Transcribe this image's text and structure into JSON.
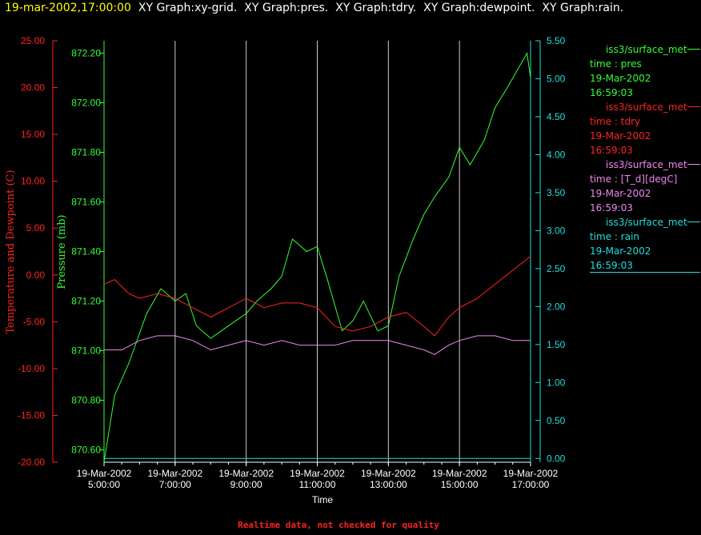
{
  "header": {
    "timestamp": "19-mar-2002,17:00:00",
    "graphs": "XY Graph:xy-grid.  XY Graph:pres.  XY Graph:tdry.  XY Graph:dewpoint.  XY Graph:rain."
  },
  "colors": {
    "timestamp": "#ffff00",
    "header_text": "#ffffff",
    "pres": "#33ff33",
    "tdry": "#ff2222",
    "dewpoint": "#ee88ee",
    "rain": "#22dddd",
    "grid": "#cccccc",
    "footer": "#ff2222",
    "axis_text": "#ffffff"
  },
  "legend": [
    {
      "name": "iss3/surface_met",
      "var": "time : pres",
      "date": "19-Mar-2002",
      "time": "16:59:03",
      "color_key": "pres"
    },
    {
      "name": "iss3/surface_met",
      "var": "time : tdry",
      "date": "19-Mar-2002",
      "time": "16:59:03",
      "color_key": "tdry"
    },
    {
      "name": "iss3/surface_met",
      "var": "time : [T_d][degC]",
      "date": "19-Mar-2002",
      "time": "16:59:03",
      "color_key": "dewpoint"
    },
    {
      "name": "iss3/surface_met",
      "var": "time : rain",
      "date": "19-Mar-2002",
      "time": "16:59:03",
      "color_key": "rain"
    }
  ],
  "footer": "Realtime data, not checked for quality",
  "chart_data": {
    "type": "line",
    "xlabel": "Time",
    "x_ticks": [
      [
        "19-Mar-2002",
        "5:00:00"
      ],
      [
        "19-Mar-2002",
        "7:00:00"
      ],
      [
        "19-Mar-2002",
        "9:00:00"
      ],
      [
        "19-Mar-2002",
        "11:00:00"
      ],
      [
        "19-Mar-2002",
        "13:00:00"
      ],
      [
        "19-Mar-2002",
        "15:00:00"
      ],
      [
        "19-Mar-2002",
        "17:00:00"
      ]
    ],
    "xlim": [
      5,
      17
    ],
    "x_unit": "hours",
    "axes": {
      "temperature": {
        "label": "Temperature and Dewpoint (C)",
        "ylim": [
          -20,
          25
        ],
        "ticks": [
          "25.00",
          "20.00",
          "15.00",
          "10.00",
          "5.00",
          "0.00",
          "-5.00",
          "-10.00",
          "-15.00",
          "-20.00"
        ]
      },
      "pressure": {
        "label": "Pressure (mb)",
        "ylim": [
          870.55,
          872.25
        ],
        "ticks": [
          "872.20",
          "872.00",
          "871.80",
          "871.60",
          "871.40",
          "871.20",
          "871.00",
          "870.80",
          "870.60"
        ]
      },
      "rain": {
        "label": "",
        "ylim": [
          -0.05,
          5.5
        ],
        "ticks": [
          "5.50",
          "5.00",
          "4.50",
          "4.00",
          "3.50",
          "3.00",
          "2.50",
          "2.00",
          "1.50",
          "1.00",
          "0.50",
          "0.00"
        ]
      }
    },
    "grid": "vertical",
    "series": [
      {
        "name": "iss3/surface_met time : pres",
        "axis": "pressure",
        "x": [
          5.0,
          5.3,
          5.7,
          6.2,
          6.6,
          7.0,
          7.3,
          7.6,
          8.0,
          8.3,
          8.7,
          9.0,
          9.3,
          9.7,
          10.0,
          10.3,
          10.7,
          11.0,
          11.3,
          11.7,
          12.0,
          12.3,
          12.7,
          13.0,
          13.3,
          13.7,
          14.0,
          14.3,
          14.7,
          15.0,
          15.3,
          15.7,
          16.0,
          16.3,
          16.7,
          16.9,
          17.0
        ],
        "values": [
          870.55,
          870.82,
          870.95,
          871.15,
          871.25,
          871.2,
          871.23,
          871.1,
          871.05,
          871.08,
          871.12,
          871.15,
          871.2,
          871.25,
          871.3,
          871.45,
          871.4,
          871.42,
          871.28,
          871.08,
          871.12,
          871.2,
          871.08,
          871.1,
          871.3,
          871.45,
          871.55,
          871.62,
          871.7,
          871.82,
          871.75,
          871.85,
          871.98,
          872.05,
          872.15,
          872.2,
          872.1
        ]
      },
      {
        "name": "iss3/surface_met time : tdry",
        "axis": "temperature",
        "x": [
          5.0,
          5.3,
          5.7,
          6.0,
          6.5,
          7.0,
          7.5,
          8.0,
          8.5,
          9.0,
          9.5,
          10.0,
          10.5,
          11.0,
          11.5,
          12.0,
          12.5,
          13.0,
          13.5,
          14.0,
          14.3,
          14.7,
          15.0,
          15.5,
          16.0,
          16.5,
          17.0
        ],
        "values": [
          -1.0,
          -0.5,
          -2.0,
          -2.5,
          -2.0,
          -2.5,
          -3.5,
          -4.5,
          -3.5,
          -2.5,
          -3.5,
          -3.0,
          -3.0,
          -3.5,
          -5.5,
          -6.0,
          -5.5,
          -4.5,
          -4.0,
          -5.5,
          -6.5,
          -4.5,
          -3.5,
          -2.5,
          -1.0,
          0.5,
          2.0
        ]
      },
      {
        "name": "iss3/surface_met time : [T_d][degC]",
        "axis": "temperature",
        "x": [
          5.0,
          5.5,
          6.0,
          6.5,
          7.0,
          7.5,
          8.0,
          8.5,
          9.0,
          9.5,
          10.0,
          10.5,
          11.0,
          11.5,
          12.0,
          12.5,
          13.0,
          13.5,
          14.0,
          14.3,
          14.7,
          15.0,
          15.5,
          16.0,
          16.5,
          17.0
        ],
        "values": [
          -8.0,
          -8.0,
          -7.0,
          -6.5,
          -6.5,
          -7.0,
          -8.0,
          -7.5,
          -7.0,
          -7.5,
          -7.0,
          -7.5,
          -7.5,
          -7.5,
          -7.0,
          -7.0,
          -7.0,
          -7.5,
          -8.0,
          -8.5,
          -7.5,
          -7.0,
          -6.5,
          -6.5,
          -7.0,
          -7.0
        ]
      },
      {
        "name": "iss3/surface_met time : rain",
        "axis": "rain",
        "x": [
          5.0,
          17.0
        ],
        "values": [
          0.0,
          0.0
        ]
      }
    ]
  }
}
